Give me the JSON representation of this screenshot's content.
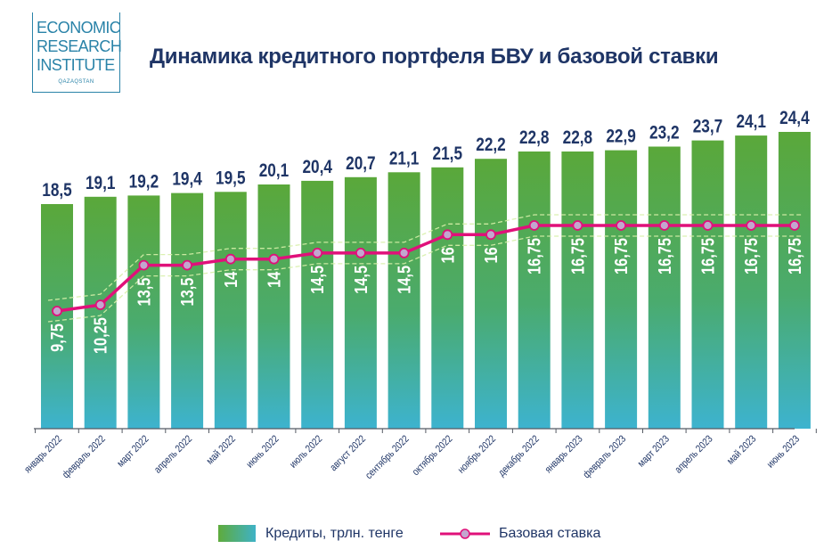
{
  "logo": {
    "line1": "ECONOMIC",
    "line2": "RESEARCH",
    "line3": "INSTITUTE",
    "sub": "QAZAQSTAN"
  },
  "chart_data": {
    "type": "bar+line",
    "title": "Динамика кредитного портфеля БВУ и базовой ставки",
    "categories": [
      "январь 2022",
      "февраль 2022",
      "март 2022",
      "апрель 2022",
      "май 2022",
      "июнь 2022",
      "июль 2022",
      "август 2022",
      "сентябрь 2022",
      "октябрь 2022",
      "ноябрь 2022",
      "декабрь 2022",
      "январь 2023",
      "февраль 2023",
      "март 2023",
      "апрель 2023",
      "май 2023",
      "июнь 2023"
    ],
    "series": [
      {
        "name": "Кредиты, трлн. тенге",
        "type": "bar",
        "values": [
          18.5,
          19.1,
          19.2,
          19.4,
          19.5,
          20.1,
          20.4,
          20.7,
          21.1,
          21.5,
          22.2,
          22.8,
          22.8,
          22.9,
          23.2,
          23.7,
          24.1,
          24.4
        ],
        "labels": [
          "18,5",
          "19,1",
          "19,2",
          "19,4",
          "19,5",
          "20,1",
          "20,4",
          "20,7",
          "21,1",
          "21,5",
          "22,2",
          "22,8",
          "22,8",
          "22,9",
          "23,2",
          "23,7",
          "24,1",
          "24,4"
        ],
        "color_top": "#5aa83a",
        "color_bottom": "#3db3cf"
      },
      {
        "name": "Базовая ставка",
        "type": "line",
        "values": [
          9.75,
          10.25,
          13.5,
          13.5,
          14,
          14,
          14.5,
          14.5,
          14.5,
          16,
          16,
          16.75,
          16.75,
          16.75,
          16.75,
          16.75,
          16.75,
          16.75
        ],
        "labels": [
          "9,75",
          "10,25",
          "13,5",
          "13,5",
          "14",
          "14",
          "14,5",
          "14,5",
          "14,5",
          "16",
          "16",
          "16,75",
          "16,75",
          "16,75",
          "16,75",
          "16,75",
          "16,75",
          "16,75"
        ],
        "color": "#e0107a",
        "marker_color": "#c3a6cf"
      }
    ],
    "legend_position": "bottom",
    "grid": false
  },
  "colors": {
    "title": "#1f3566",
    "logo": "#2a83a8",
    "label_dark": "#1f3566",
    "label_light": "#ffffff"
  }
}
